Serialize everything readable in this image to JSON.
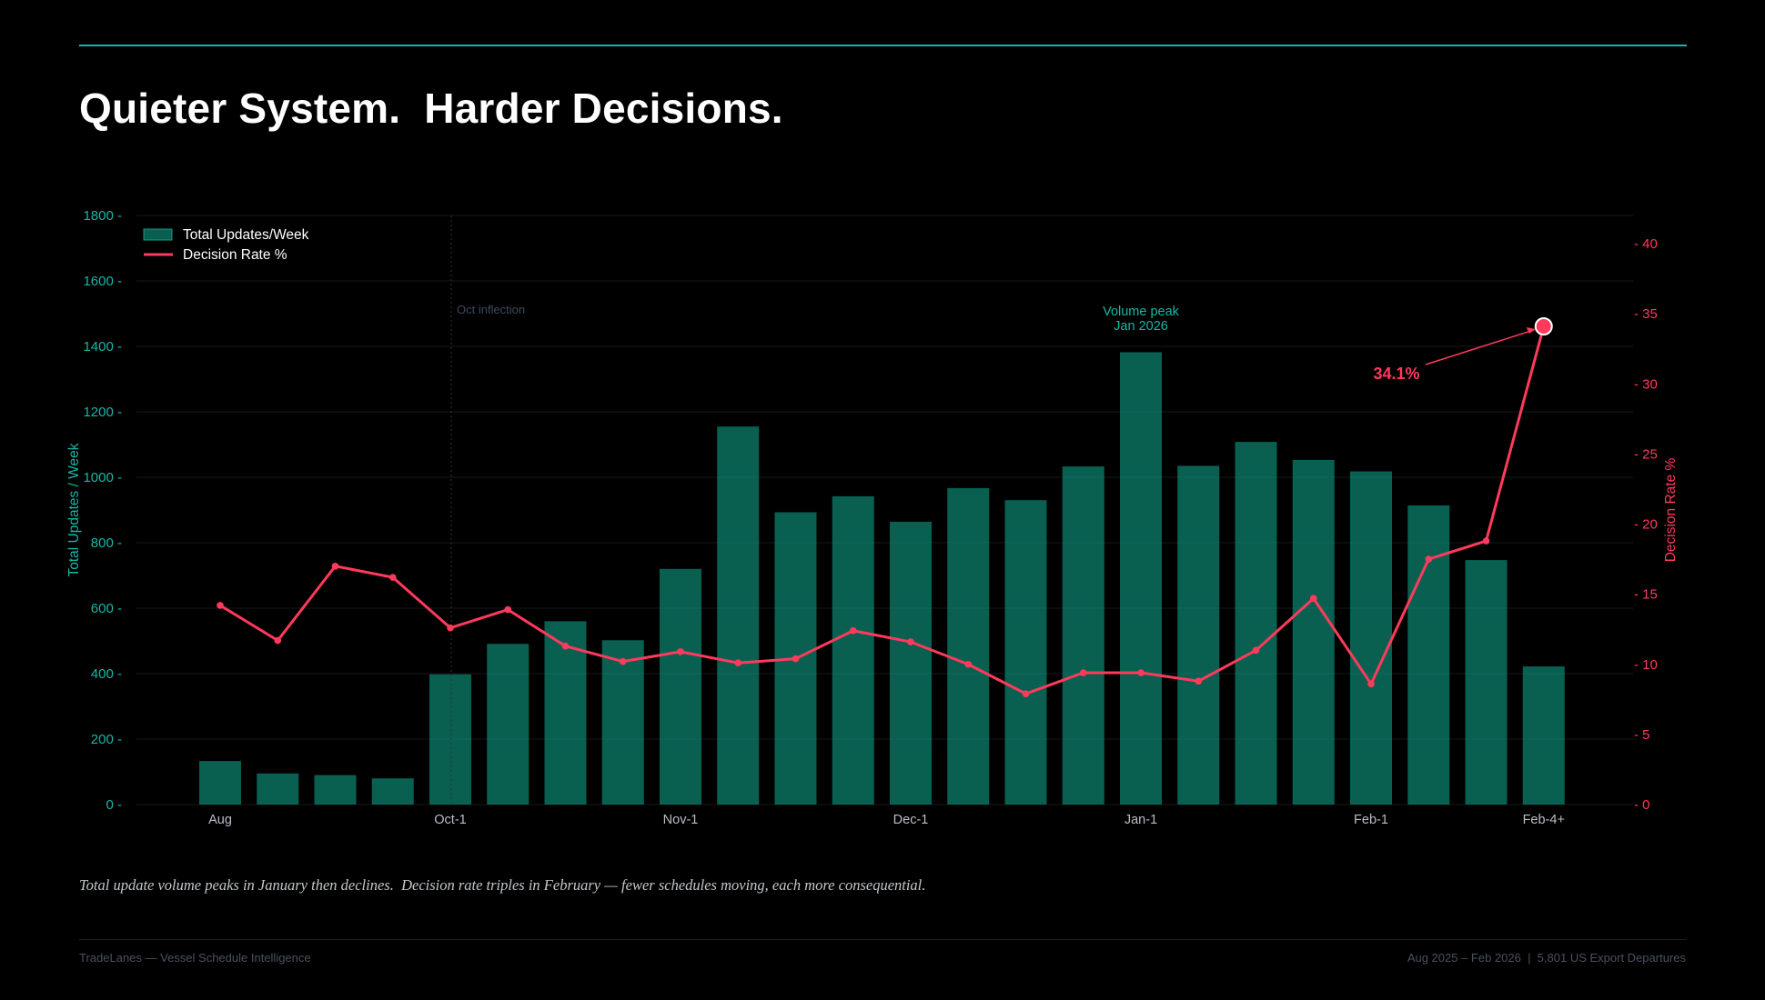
{
  "title": "Quieter System.  Harder Decisions.",
  "caption": "Total update volume peaks in January then declines.  Decision rate triples in February — fewer schedules moving, each more consequential.",
  "footer": {
    "left": "TradeLanes — Vessel Schedule Intelligence",
    "right": "Aug 2025 – Feb 2026  |  5,801 US Export Departures"
  },
  "colors": {
    "accent": "#14b8a6",
    "bars": "#0e9b82",
    "line": "#ff3a5c",
    "annotation_muted": "#3d4a5e"
  },
  "chart_data": {
    "type": "bar",
    "x_tick_labels": [
      "Aug",
      "",
      "",
      "",
      "Oct-1",
      "",
      "",
      "",
      "Nov-1",
      "",
      "",
      "",
      "Dec-1",
      "",
      "",
      "",
      "Jan-1",
      "",
      "",
      "",
      "Feb-1",
      "",
      "",
      "Feb-4+"
    ],
    "series": [
      {
        "name": "Total Updates/Week",
        "type": "bar",
        "axis": "left",
        "values": [
          133,
          95,
          90,
          80,
          398,
          491,
          560,
          502,
          720,
          1155,
          893,
          942,
          864,
          967,
          930,
          1033,
          1382,
          1035,
          1108,
          1053,
          1018,
          914,
          747,
          422
        ]
      },
      {
        "name": "Decision Rate %",
        "type": "line",
        "axis": "right",
        "values": [
          14.2,
          11.7,
          17.0,
          16.2,
          12.6,
          13.9,
          11.3,
          10.2,
          10.9,
          10.1,
          10.4,
          12.4,
          11.6,
          10.0,
          7.9,
          9.4,
          9.4,
          8.8,
          11.0,
          14.7,
          8.6,
          17.5,
          18.8,
          34.1
        ]
      }
    ],
    "ylabel_left": "Total Updates / Week",
    "ylabel_right": "Decision Rate %",
    "ylim_left": [
      0,
      1800
    ],
    "yticks_left": [
      0,
      200,
      400,
      600,
      800,
      1000,
      1200,
      1400,
      1600,
      1800
    ],
    "ylim_right": [
      0,
      40
    ],
    "yticks_right": [
      0,
      5,
      10,
      15,
      20,
      25,
      30,
      35,
      40
    ],
    "legend": {
      "position": "top-left",
      "entries": [
        "Total Updates/Week",
        "Decision Rate %"
      ]
    },
    "annotations": [
      {
        "text": "Oct inflection",
        "at_index": 4,
        "style": "vertical-dotted-line"
      },
      {
        "lines": [
          "Volume peak",
          "Jan 2026"
        ],
        "at_index": 16
      },
      {
        "text": "34.1%",
        "at_index": 23,
        "style": "arrow-to-highlighted-point"
      }
    ],
    "grid": true
  }
}
